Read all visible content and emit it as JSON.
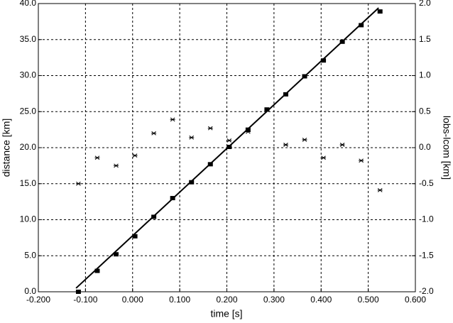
{
  "chart_data": {
    "type": "scatter",
    "xlabel": "time [s]",
    "ylabel": "distance [km]",
    "y2label": "lobs-lcom [km]",
    "xlim": [
      -0.2,
      0.6
    ],
    "xticks": [
      {
        "value": -0.2,
        "label": "-0.200"
      },
      {
        "value": -0.1,
        "label": "-0.100"
      },
      {
        "value": 0,
        "label": "0.000"
      },
      {
        "value": 0.1,
        "label": "0.100"
      },
      {
        "value": 0.2,
        "label": "0.200"
      },
      {
        "value": 0.3,
        "label": "0.300"
      },
      {
        "value": 0.4,
        "label": "0.400"
      },
      {
        "value": 0.5,
        "label": "0.500"
      },
      {
        "value": 0.6,
        "label": "0.600"
      }
    ],
    "ylim": [
      0,
      40
    ],
    "yticks": [
      {
        "value": 0,
        "label": "0.0"
      },
      {
        "value": 5,
        "label": "5.0"
      },
      {
        "value": 10,
        "label": "10.0"
      },
      {
        "value": 15,
        "label": "15.0"
      },
      {
        "value": 20,
        "label": "20.0"
      },
      {
        "value": 25,
        "label": "25.0"
      },
      {
        "value": 30,
        "label": "30.0"
      },
      {
        "value": 35,
        "label": "35.0"
      },
      {
        "value": 40,
        "label": "40.0"
      }
    ],
    "y2lim": [
      -2,
      2
    ],
    "y2ticks": [
      {
        "value": -2,
        "label": "-2.0"
      },
      {
        "value": -1.5,
        "label": "-1.5"
      },
      {
        "value": -1,
        "label": "-1.0"
      },
      {
        "value": -0.5,
        "label": "-0.5"
      },
      {
        "value": 0,
        "label": "0.0"
      },
      {
        "value": 0.5,
        "label": "0.5"
      },
      {
        "value": 1,
        "label": "1.0"
      },
      {
        "value": 1.5,
        "label": "1.5"
      },
      {
        "value": 2,
        "label": "2.0"
      }
    ],
    "grid": true,
    "series": [
      {
        "marker": "square",
        "color": "#000000",
        "x": [
          -0.115,
          -0.075,
          -0.035,
          0.005,
          0.045,
          0.085,
          0.125,
          0.165,
          0.205,
          0.245,
          0.285,
          0.325,
          0.365,
          0.405,
          0.445,
          0.485,
          0.525
        ],
        "values": [
          0.0,
          2.9,
          5.2,
          7.7,
          10.4,
          13.0,
          15.2,
          17.7,
          20.1,
          22.5,
          25.3,
          27.4,
          29.9,
          32.1,
          34.7,
          37.0,
          38.9
        ]
      },
      {
        "marker": "line",
        "color": "#000000",
        "x": [
          -0.12,
          0.522
        ],
        "values": [
          0.5,
          39.4
        ]
      },
      {
        "marker": "star",
        "color": "#000000",
        "axis": "y2",
        "x": [
          -0.115,
          -0.075,
          -0.035,
          0.005,
          0.045,
          0.085,
          0.125,
          0.165,
          0.205,
          0.245,
          0.325,
          0.365,
          0.405,
          0.445,
          0.485,
          0.525
        ],
        "values": [
          -0.5,
          -0.14,
          -0.25,
          -0.11,
          0.2,
          0.39,
          0.14,
          0.27,
          0.1,
          0.22,
          0.04,
          0.11,
          -0.14,
          0.04,
          -0.18,
          -0.59
        ]
      }
    ]
  }
}
